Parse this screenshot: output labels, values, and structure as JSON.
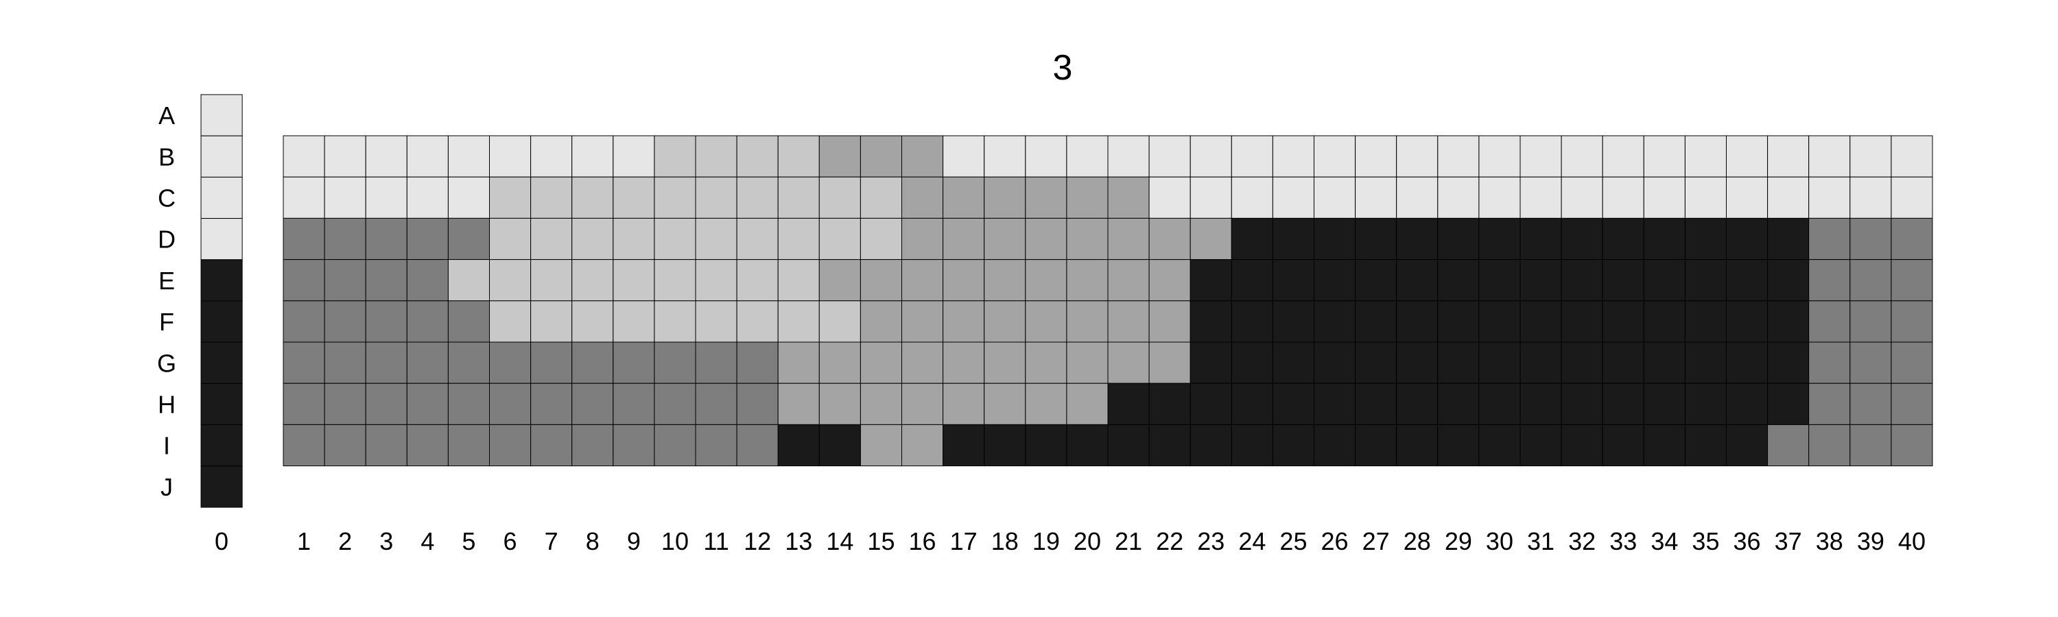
{
  "chart_data": {
    "type": "heatmap",
    "title": "3",
    "row_labels": [
      "A",
      "B",
      "C",
      "D",
      "E",
      "F",
      "G",
      "H",
      "I",
      "J"
    ],
    "column_labels": [
      "1",
      "2",
      "3",
      "4",
      "5",
      "6",
      "7",
      "8",
      "9",
      "10",
      "11",
      "12",
      "13",
      "14",
      "15",
      "16",
      "17",
      "18",
      "19",
      "20",
      "21",
      "22",
      "23",
      "24",
      "25",
      "26",
      "27",
      "28",
      "29",
      "30",
      "31",
      "32",
      "33",
      "34",
      "35",
      "36",
      "37",
      "38",
      "39",
      "40"
    ],
    "reference_column_label": "0",
    "reference_column": [
      0,
      0,
      0,
      0,
      5,
      5,
      5,
      5,
      5,
      5
    ],
    "grid_rows": [
      "B",
      "C",
      "D",
      "E",
      "F",
      "G",
      "H",
      "I"
    ],
    "levels": {
      "0": "#e6e6e6",
      "1": "#c8c8c8",
      "2": "#a4a4a4",
      "3": "#7e7e7e",
      "5": "#1a1a1a"
    },
    "values": [
      [
        0,
        0,
        0,
        0,
        0,
        0,
        0,
        0,
        0,
        1,
        1,
        1,
        1,
        2,
        2,
        2,
        0,
        0,
        0,
        0,
        0,
        0,
        0,
        0,
        0,
        0,
        0,
        0,
        0,
        0,
        0,
        0,
        0,
        0,
        0,
        0,
        0,
        0,
        0,
        0
      ],
      [
        0,
        0,
        0,
        0,
        0,
        1,
        1,
        1,
        1,
        1,
        1,
        1,
        1,
        1,
        1,
        2,
        2,
        2,
        2,
        2,
        2,
        0,
        0,
        0,
        0,
        0,
        0,
        0,
        0,
        0,
        0,
        0,
        0,
        0,
        0,
        0,
        0,
        0,
        0,
        0
      ],
      [
        3,
        3,
        3,
        3,
        3,
        1,
        1,
        1,
        1,
        1,
        1,
        1,
        1,
        1,
        1,
        2,
        2,
        2,
        2,
        2,
        2,
        2,
        2,
        5,
        5,
        5,
        5,
        5,
        5,
        5,
        5,
        5,
        5,
        5,
        5,
        5,
        5,
        3,
        3,
        3
      ],
      [
        3,
        3,
        3,
        3,
        1,
        1,
        1,
        1,
        1,
        1,
        1,
        1,
        1,
        2,
        2,
        2,
        2,
        2,
        2,
        2,
        2,
        2,
        5,
        5,
        5,
        5,
        5,
        5,
        5,
        5,
        5,
        5,
        5,
        5,
        5,
        5,
        5,
        3,
        3,
        3
      ],
      [
        3,
        3,
        3,
        3,
        3,
        1,
        1,
        1,
        1,
        1,
        1,
        1,
        1,
        1,
        2,
        2,
        2,
        2,
        2,
        2,
        2,
        2,
        5,
        5,
        5,
        5,
        5,
        5,
        5,
        5,
        5,
        5,
        5,
        5,
        5,
        5,
        5,
        3,
        3,
        3
      ],
      [
        3,
        3,
        3,
        3,
        3,
        3,
        3,
        3,
        3,
        3,
        3,
        3,
        2,
        2,
        2,
        2,
        2,
        2,
        2,
        2,
        2,
        2,
        5,
        5,
        5,
        5,
        5,
        5,
        5,
        5,
        5,
        5,
        5,
        5,
        5,
        5,
        5,
        3,
        3,
        3
      ],
      [
        3,
        3,
        3,
        3,
        3,
        3,
        3,
        3,
        3,
        3,
        3,
        3,
        2,
        2,
        2,
        2,
        2,
        2,
        2,
        2,
        5,
        5,
        5,
        5,
        5,
        5,
        5,
        5,
        5,
        5,
        5,
        5,
        5,
        5,
        5,
        5,
        5,
        3,
        3,
        3
      ],
      [
        3,
        3,
        3,
        3,
        3,
        3,
        3,
        3,
        3,
        3,
        3,
        3,
        5,
        5,
        2,
        2,
        5,
        5,
        5,
        5,
        5,
        5,
        5,
        5,
        5,
        5,
        5,
        5,
        5,
        5,
        5,
        5,
        5,
        5,
        5,
        5,
        3,
        3,
        3,
        3
      ]
    ]
  }
}
